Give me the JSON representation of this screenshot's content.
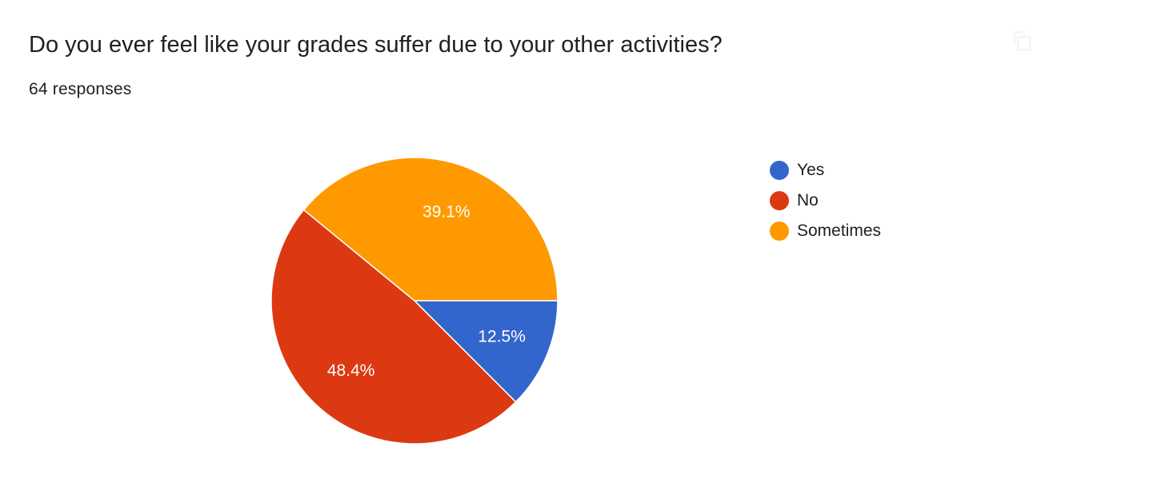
{
  "question": {
    "title": "Do you ever feel like your grades suffer due to your other activities?",
    "responses": "64 responses"
  },
  "toolbar": {
    "copy_icon": "copy-icon"
  },
  "colors": {
    "Yes": "#3366cc",
    "No": "#dc3912",
    "Sometimes": "#ff9900",
    "slice_border": "#ffffff",
    "label_text": "#ffffff"
  },
  "chart_data": {
    "type": "pie",
    "title": "Do you ever feel like your grades suffer due to your other activities?",
    "total": 64,
    "categories": [
      "Yes",
      "No",
      "Sometimes"
    ],
    "values": [
      8,
      31,
      25
    ],
    "labels": [
      "12.5%",
      "48.4%",
      "39.1%"
    ],
    "legend_position": "right",
    "start_angle": "3 o'clock, clockwise"
  }
}
